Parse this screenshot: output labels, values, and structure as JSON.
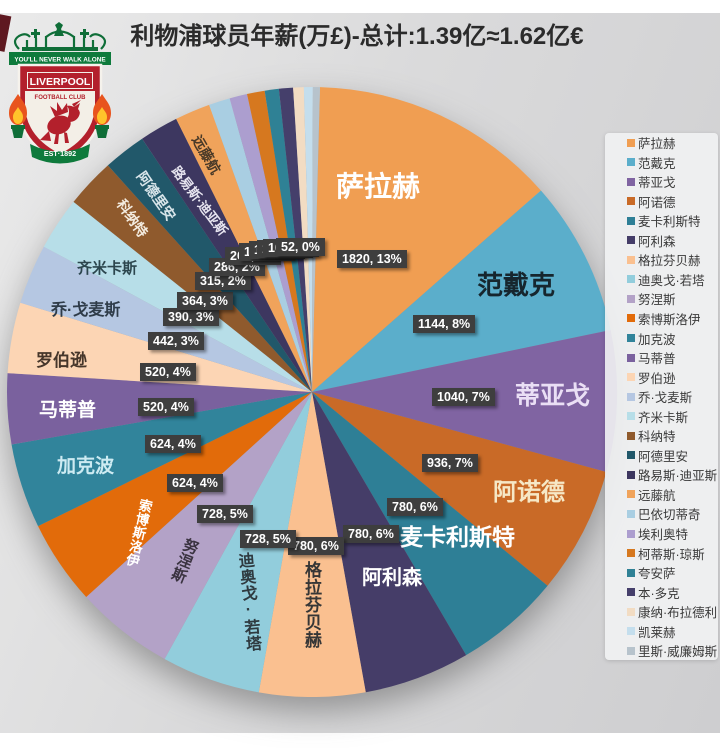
{
  "title": "利物浦球员年薪(万£)-总计:1.39亿≈1.62亿€",
  "logo": {
    "banner": "YOU'LL NEVER WALK ALONE",
    "club_name": "LIVERPOOL",
    "club_sub": "FOOTBALL CLUB",
    "established": "EST·1892"
  },
  "chart_data": {
    "type": "pie",
    "title": "利物浦球员年薪(万£)-总计:1.39亿≈1.62亿€",
    "unit": "万£",
    "total": 13900,
    "legend_position": "right",
    "series": [
      {
        "name": "萨拉赫",
        "value": 1820,
        "pct": "13%",
        "color": "#F09E52"
      },
      {
        "name": "范戴克",
        "value": 1144,
        "pct": "8%",
        "color": "#5BAECB"
      },
      {
        "name": "蒂亚戈",
        "value": 1040,
        "pct": "7%",
        "color": "#8064A2"
      },
      {
        "name": "阿诺德",
        "value": 936,
        "pct": "7%",
        "color": "#C96A27"
      },
      {
        "name": "麦卡利斯特",
        "value": 780,
        "pct": "6%",
        "color": "#2E7F96"
      },
      {
        "name": "阿利森",
        "value": 780,
        "pct": "6%",
        "color": "#453D68"
      },
      {
        "name": "格拉芬贝赫",
        "value": 780,
        "pct": "6%",
        "color": "#FAC090"
      },
      {
        "name": "迪奥戈·若塔",
        "value": 728,
        "pct": "5%",
        "color": "#92CDDC"
      },
      {
        "name": "努涅斯",
        "value": 728,
        "pct": "5%",
        "color": "#B3A2C7"
      },
      {
        "name": "索博斯洛伊",
        "value": 624,
        "pct": "4%",
        "color": "#E26B0A"
      },
      {
        "name": "加克波",
        "value": 624,
        "pct": "4%",
        "color": "#31849B"
      },
      {
        "name": "马蒂普",
        "value": 520,
        "pct": "4%",
        "color": "#7A619E"
      },
      {
        "name": "罗伯逊",
        "value": 520,
        "pct": "4%",
        "color": "#FCD5B4"
      },
      {
        "name": "乔·戈麦斯",
        "value": 442,
        "pct": "3%",
        "color": "#B5C7E2"
      },
      {
        "name": "齐米卡斯",
        "value": 390,
        "pct": "3%",
        "color": "#B7DEE8"
      },
      {
        "name": "科纳特",
        "value": 364,
        "pct": "3%",
        "color": "#8F5A2D"
      },
      {
        "name": "阿德里安",
        "value": 315,
        "pct": "2%",
        "color": "#21586A"
      },
      {
        "name": "路易斯·迪亚斯",
        "value": 286,
        "pct": "2%",
        "color": "#3D3760"
      },
      {
        "name": "远藤航",
        "value": 260,
        "pct": "2%",
        "color": "#F0A35B"
      },
      {
        "name": "巴依切蒂奇",
        "value": 156,
        "pct": "1%",
        "color": "#A9CEE2"
      },
      {
        "name": "埃利奥特",
        "value": 130,
        "pct": "1%",
        "color": "#AC9ECF"
      },
      {
        "name": "柯蒂斯·琼斯",
        "value": 130,
        "pct": "1%",
        "color": "#D6781F"
      },
      {
        "name": "夸安萨",
        "value": 104,
        "pct": "1%",
        "color": "#2F8195"
      },
      {
        "name": "本·多克",
        "value": 104,
        "pct": "1%",
        "color": "#453F6B"
      },
      {
        "name": "康纳·布拉德利",
        "value": 78,
        "pct": "1%",
        "color": "#F2DCC3"
      },
      {
        "name": "凯莱赫",
        "value": 65,
        "pct": "0%",
        "color": "#C4DEED"
      },
      {
        "name": "里斯·威廉姆斯",
        "value": 52,
        "pct": "0%",
        "color": "#B7C3CC"
      }
    ]
  }
}
